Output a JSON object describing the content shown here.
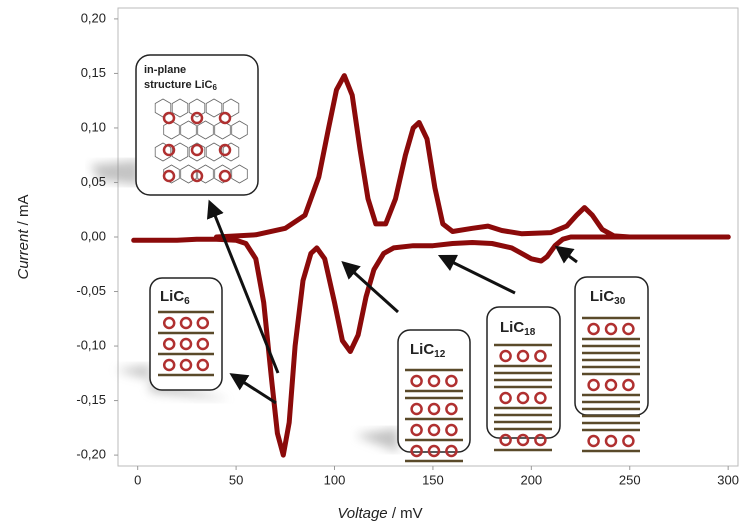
{
  "chart_data": {
    "type": "line",
    "x_label": {
      "quantity": "Voltage",
      "unit": "/ mV"
    },
    "y_label": {
      "quantity": "Current",
      "unit": "/ mA"
    },
    "xlim": [
      -10,
      305
    ],
    "ylim": [
      -0.21,
      0.21
    ],
    "xticks": [
      0,
      50,
      100,
      150,
      200,
      250,
      300
    ],
    "yticks": [
      {
        "value": -0.2,
        "label": "-0,20"
      },
      {
        "value": -0.15,
        "label": "-0,15"
      },
      {
        "value": -0.1,
        "label": "-0,10"
      },
      {
        "value": -0.05,
        "label": "-0,05"
      },
      {
        "value": 0,
        "label": "0,00"
      },
      {
        "value": 0.05,
        "label": "0,05"
      },
      {
        "value": 0.1,
        "label": "0,10"
      },
      {
        "value": 0.15,
        "label": "0,15"
      },
      {
        "value": 0.2,
        "label": "0,20"
      }
    ],
    "series": [
      {
        "color": "#8b0a0a",
        "x": [
          -2,
          0,
          10,
          20,
          30,
          40,
          50,
          55,
          60,
          64,
          68,
          71,
          74,
          77,
          80,
          84,
          88,
          91,
          95,
          100,
          104,
          108,
          112,
          116,
          120,
          125,
          130,
          140,
          150,
          160,
          170,
          180,
          190,
          196,
          200,
          205,
          208,
          212,
          216,
          220,
          230,
          250,
          270,
          300
        ],
        "values": [
          -0.003,
          -0.003,
          -0.003,
          -0.003,
          -0.002,
          -0.002,
          -0.003,
          -0.006,
          -0.02,
          -0.06,
          -0.13,
          -0.18,
          -0.2,
          -0.17,
          -0.1,
          -0.04,
          -0.015,
          -0.01,
          -0.02,
          -0.06,
          -0.095,
          -0.105,
          -0.09,
          -0.055,
          -0.03,
          -0.015,
          -0.01,
          -0.008,
          -0.008,
          -0.006,
          -0.005,
          -0.006,
          -0.01,
          -0.016,
          -0.02,
          -0.022,
          -0.018,
          -0.008,
          -0.002,
          0,
          0,
          0,
          0,
          0
        ]
      },
      {
        "color": "#8b0a0a",
        "x": [
          40,
          60,
          75,
          85,
          92,
          97,
          101,
          105,
          109,
          113,
          117,
          121,
          126,
          131,
          136,
          140,
          143,
          147,
          151,
          155,
          160,
          170,
          178,
          185,
          195,
          210,
          218,
          223,
          227,
          231,
          236,
          242,
          250,
          300
        ],
        "values": [
          0,
          0.002,
          0.008,
          0.02,
          0.055,
          0.1,
          0.135,
          0.148,
          0.13,
          0.08,
          0.035,
          0.012,
          0.012,
          0.035,
          0.075,
          0.1,
          0.105,
          0.09,
          0.045,
          0.012,
          0.005,
          0.008,
          0.01,
          0.006,
          0.003,
          0.004,
          0.01,
          0.02,
          0.027,
          0.02,
          0.007,
          0.001,
          0,
          0
        ]
      }
    ],
    "annotations": [
      {
        "line1": "in-plane",
        "line2": "structure LiC",
        "sub": "6"
      },
      {
        "main": "LiC",
        "sub": "6"
      },
      {
        "main": "LiC",
        "sub": "12"
      },
      {
        "main": "LiC",
        "sub": "18"
      },
      {
        "main": "LiC",
        "sub": "30"
      }
    ]
  }
}
